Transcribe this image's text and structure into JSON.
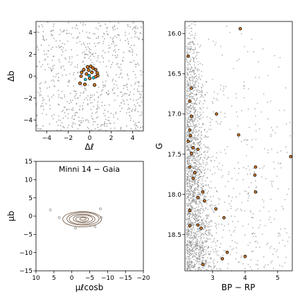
{
  "figure": {
    "title": "Minni 14 − Gaia",
    "colors": {
      "field": "#8c8c8c",
      "member_fill": "#e07b1f",
      "member_edge": "#111111",
      "contour": "#6b4f3a",
      "cyan": "#22b5c9"
    }
  },
  "chart_data": [
    {
      "type": "scatter",
      "panel": "sky",
      "xlabel": "Δℓ",
      "ylabel": "Δb",
      "xlim": [
        -5,
        5
      ],
      "ylim": [
        -5,
        5
      ],
      "xticks": [
        -4,
        -2,
        0,
        2,
        4
      ],
      "yticks": [
        -4,
        -2,
        0,
        2,
        4
      ],
      "xtick_labels": [
        "−4",
        "−2",
        "0",
        "2",
        "4"
      ],
      "ytick_labels": [
        "−4",
        "−2",
        "0",
        "2",
        "4"
      ],
      "field_density": "uniform",
      "members": [
        {
          "x": -0.2,
          "y": 0.85
        },
        {
          "x": 0.1,
          "y": 0.9
        },
        {
          "x": 0.3,
          "y": 0.75
        },
        {
          "x": 0.55,
          "y": 0.6
        },
        {
          "x": 0.7,
          "y": 0.3
        },
        {
          "x": 0.75,
          "y": 0.05
        },
        {
          "x": -0.55,
          "y": 0.6
        },
        {
          "x": -0.75,
          "y": 0.35
        },
        {
          "x": -0.8,
          "y": 0.0
        },
        {
          "x": -0.9,
          "y": -0.65
        },
        {
          "x": -0.45,
          "y": -0.75
        },
        {
          "x": 0.45,
          "y": -0.8
        },
        {
          "x": 0.2,
          "y": 0.35
        },
        {
          "x": -0.3,
          "y": 0.2
        },
        {
          "x": 0.0,
          "y": -0.2
        },
        {
          "x": 0.55,
          "y": -0.05
        },
        {
          "x": -0.1,
          "y": 0.55
        }
      ],
      "cyan_points": [
        {
          "x": -0.05,
          "y": 0.05
        },
        {
          "x": 0.35,
          "y": -0.15
        },
        {
          "x": -0.4,
          "y": -0.3
        }
      ]
    },
    {
      "type": "scatter",
      "panel": "proper-motion",
      "title": "Minni 14 − Gaia",
      "xlabel": "μℓcosb",
      "ylabel": "μb",
      "xlim": [
        10,
        -20
      ],
      "ylim": [
        -15,
        15
      ],
      "xticks": [
        10,
        5,
        0,
        -5,
        -10,
        -15,
        -20
      ],
      "yticks": [
        -15,
        -10,
        -5,
        0,
        5,
        10,
        15
      ],
      "xtick_labels": [
        "10",
        "5",
        "0",
        "−5",
        "−10",
        "−15",
        "−20"
      ],
      "ytick_labels": [
        "−15",
        "−10",
        "−5",
        "0",
        "5",
        "10",
        "15"
      ],
      "contour_center": [
        -3.0,
        -0.8
      ],
      "contour_levels": [
        {
          "rx": 5.4,
          "ry": 2.1
        },
        {
          "rx": 4.5,
          "ry": 1.75
        },
        {
          "rx": 3.6,
          "ry": 1.4
        },
        {
          "rx": 2.7,
          "ry": 1.05
        },
        {
          "rx": 1.8,
          "ry": 0.7
        },
        {
          "rx": 0.9,
          "ry": 0.35
        }
      ],
      "outliers": [
        {
          "x": 6.0,
          "y": 1.7
        },
        {
          "x": 3.5,
          "y": -0.4
        },
        {
          "x": -8.0,
          "y": 2.0
        },
        {
          "x": -8.2,
          "y": -0.4
        },
        {
          "x": -1.0,
          "y": -3.3
        },
        {
          "x": -6.5,
          "y": -2.9
        }
      ]
    },
    {
      "type": "scatter",
      "panel": "cmd",
      "xlabel": "BP − RP",
      "ylabel": "G",
      "xlim": [
        2.15,
        5.45
      ],
      "ylim": [
        18.95,
        15.85
      ],
      "y_inverted": true,
      "xticks": [
        3,
        4,
        5
      ],
      "yticks": [
        16.0,
        16.5,
        17.0,
        17.5,
        18.0,
        18.5
      ],
      "xtick_labels": [
        "3",
        "4",
        "5"
      ],
      "ytick_labels": [
        "16.0",
        "16.5",
        "17.0",
        "17.5",
        "18.0",
        "18.5"
      ],
      "field_density": "concentrated near BP−RP 2.2–2.8, increasing toward faint G",
      "members": [
        {
          "x": 3.85,
          "y": 15.94
        },
        {
          "x": 2.25,
          "y": 16.28
        },
        {
          "x": 2.35,
          "y": 16.68
        },
        {
          "x": 2.3,
          "y": 16.84
        },
        {
          "x": 2.35,
          "y": 17.03
        },
        {
          "x": 3.12,
          "y": 17.0
        },
        {
          "x": 2.3,
          "y": 17.2
        },
        {
          "x": 2.32,
          "y": 17.27
        },
        {
          "x": 3.8,
          "y": 17.26
        },
        {
          "x": 2.25,
          "y": 17.34
        },
        {
          "x": 2.4,
          "y": 17.42
        },
        {
          "x": 2.55,
          "y": 17.44
        },
        {
          "x": 2.35,
          "y": 17.49
        },
        {
          "x": 5.4,
          "y": 17.53
        },
        {
          "x": 2.3,
          "y": 17.66
        },
        {
          "x": 4.32,
          "y": 17.66
        },
        {
          "x": 2.45,
          "y": 17.73
        },
        {
          "x": 4.3,
          "y": 17.76
        },
        {
          "x": 2.4,
          "y": 17.8
        },
        {
          "x": 2.7,
          "y": 17.97
        },
        {
          "x": 4.32,
          "y": 17.97
        },
        {
          "x": 2.55,
          "y": 18.04
        },
        {
          "x": 2.75,
          "y": 18.08
        },
        {
          "x": 3.1,
          "y": 18.18
        },
        {
          "x": 2.3,
          "y": 18.2
        },
        {
          "x": 3.35,
          "y": 18.29
        },
        {
          "x": 2.3,
          "y": 18.39
        },
        {
          "x": 2.65,
          "y": 18.42
        },
        {
          "x": 2.55,
          "y": 18.38
        },
        {
          "x": 3.45,
          "y": 18.72
        },
        {
          "x": 3.3,
          "y": 18.8
        },
        {
          "x": 4.0,
          "y": 18.77
        },
        {
          "x": 2.7,
          "y": 18.87
        }
      ]
    }
  ]
}
